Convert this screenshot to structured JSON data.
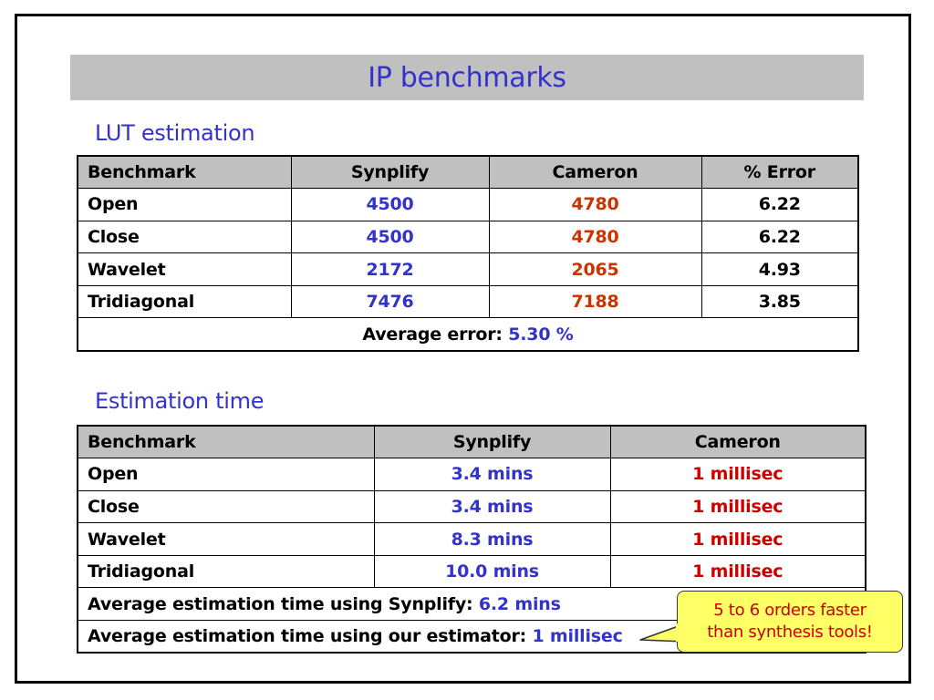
{
  "title": "IP benchmarks",
  "lut_section": {
    "heading": "LUT estimation",
    "headers": [
      "Benchmark",
      "Synplify",
      "Cameron",
      "% Error"
    ],
    "rows": [
      {
        "benchmark": "Open",
        "synplify": "4500",
        "cameron": "4780",
        "error": "6.22"
      },
      {
        "benchmark": "Close",
        "synplify": "4500",
        "cameron": "4780",
        "error": "6.22"
      },
      {
        "benchmark": "Wavelet",
        "synplify": "2172",
        "cameron": "2065",
        "error": "4.93"
      },
      {
        "benchmark": "Tridiagonal",
        "synplify": "7476",
        "cameron": "7188",
        "error": "3.85"
      }
    ],
    "average_label": "Average error:",
    "average_value": "5.30 %"
  },
  "time_section": {
    "heading": "Estimation time",
    "headers": [
      "Benchmark",
      "Synplify",
      "Cameron"
    ],
    "rows": [
      {
        "benchmark": "Open",
        "synplify": "3.4 mins",
        "cameron": "1 millisec"
      },
      {
        "benchmark": "Close",
        "synplify": "3.4 mins",
        "cameron": "1 millisec"
      },
      {
        "benchmark": "Wavelet",
        "synplify": "8.3 mins",
        "cameron": "1 millisec"
      },
      {
        "benchmark": "Tridiagonal",
        "synplify": "10.0 mins",
        "cameron": "1 millisec"
      }
    ],
    "avg_synplify_label": "Average estimation time using Synplify:",
    "avg_synplify_value": "6.2 mins",
    "avg_ours_label": "Average estimation time using our estimator:",
    "avg_ours_value": "1 millisec"
  },
  "callout": {
    "line1": "5 to 6 orders faster",
    "line2": "than synthesis tools!"
  },
  "colors": {
    "title_blue": "#3333cc",
    "synplify_blue": "#3333cc",
    "cameron_orange": "#cc3300",
    "cameron_red": "#cc0000",
    "header_gray": "#c0c0c0",
    "callout_yellow": "#ffff66"
  }
}
